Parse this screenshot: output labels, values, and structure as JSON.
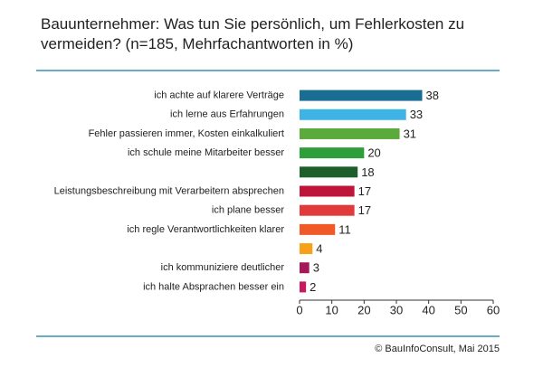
{
  "chart_data": {
    "type": "bar",
    "orientation": "horizontal",
    "title": "Bauunternehmer: Was tun Sie persönlich, um Fehlerkosten zu vermeiden? (n=185, Mehrfachantworten in %)",
    "categories": [
      "ich achte auf klarere Verträge",
      "ich lerne aus Erfahrungen",
      "Fehler passieren immer, Kosten einkalkuliert",
      "ich schule meine Mitarbeiter besser",
      null,
      "Leistungsbeschreibung mit Verarbeitern absprechen",
      "ich plane besser",
      "ich regle Verantwortlichkeiten klarer",
      null,
      "ich kommuniziere deutlicher",
      "ich halte Absprachen besser ein"
    ],
    "values": [
      38,
      33,
      31,
      20,
      18,
      17,
      17,
      11,
      4,
      3,
      2
    ],
    "colors": [
      "#1a6e94",
      "#3db4e5",
      "#5aaa3c",
      "#2e9e3a",
      "#1e5e2a",
      "#c0153a",
      "#e03a3a",
      "#f05a28",
      "#f7a11a",
      "#a5195a",
      "#c8185f"
    ],
    "xlim": [
      0,
      60
    ],
    "xticks": [
      0,
      10,
      20,
      30,
      40,
      50,
      60
    ],
    "source": "© BauInfoConsult, Mai 2015"
  }
}
